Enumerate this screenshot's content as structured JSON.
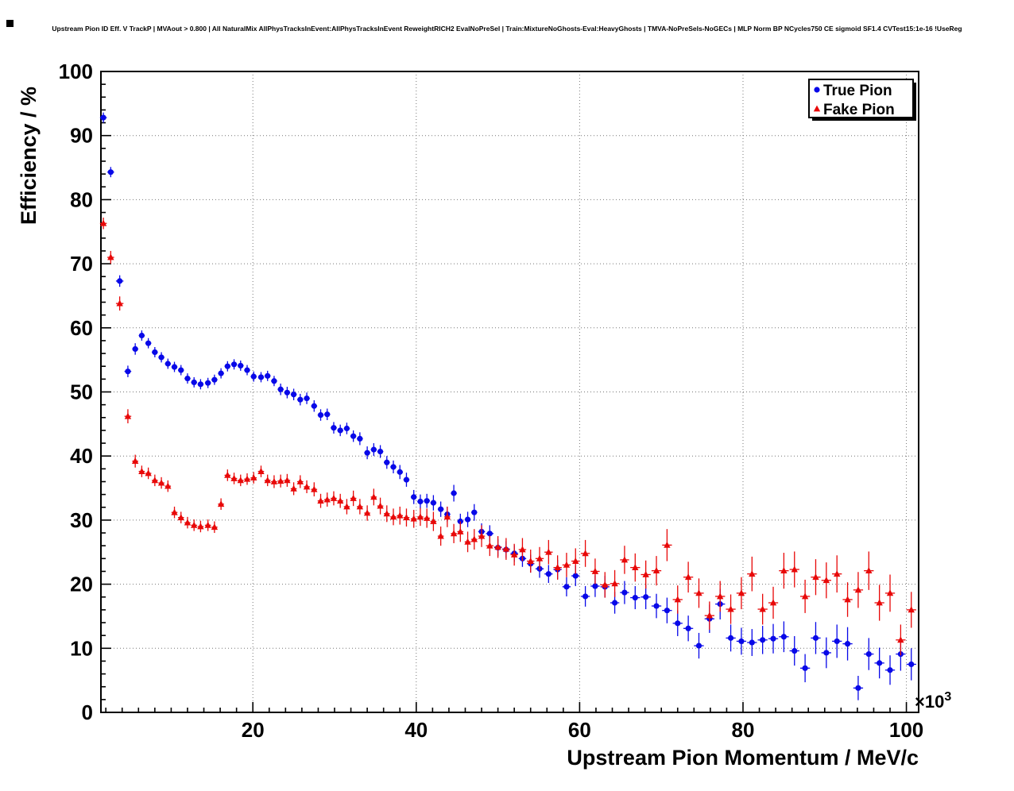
{
  "title": "Upstream Pion ID Eff. V TrackP | MVAout > 0.800 | All NaturalMix AllPhysTracksInEvent:AllPhysTracksInEvent ReweightRICH2 EvalNoPreSel | Train:MixtureNoGhosts-Eval:HeavyGhosts | TMVA-NoPreSels-NoGECs | MLP Norm BP NCycles750 CE sigmoid SF1.4 CVTest15:1e-16 !UseReg",
  "colors": {
    "true_pion": "#0808e8",
    "fake_pion": "#e80808",
    "frame": "#000000",
    "grid": "#777777"
  },
  "chart_data": {
    "type": "scatter",
    "title": "Upstream Pion ID Eff. V TrackP | MVAout > 0.800 | All NaturalMix AllPhysTracksInEvent:AllPhysTracksInEvent ReweightRICH2 EvalNoPreSel | Train:MixtureNoGhosts-Eval:HeavyGhosts | TMVA-NoPreSels-NoGECs | MLP Norm BP NCycles750 CE sigmoid SF1.4 CVTest15:1e-16 !UseReg",
    "xlabel": "Upstream Pion Momentum / MeV/c",
    "ylabel": "Efficiency / %",
    "x_scale_base": "×10",
    "x_scale_exp": "3",
    "xlim": [
      1.4,
      101.5
    ],
    "ylim": [
      0,
      100
    ],
    "x_ticks": [
      20,
      40,
      60,
      80,
      100
    ],
    "y_ticks": [
      0,
      10,
      20,
      30,
      40,
      50,
      60,
      70,
      80,
      90,
      100
    ],
    "x_minor_step": 2,
    "y_minor_step": 2,
    "grid": true,
    "grid_style": "dotted",
    "legend_position": "top-right",
    "series": [
      {
        "name": "True Pion",
        "marker": "circle",
        "color": "#0808e8",
        "points": [
          [
            1.7,
            92.8,
            0.8
          ],
          [
            2.6,
            84.3,
            0.8
          ],
          [
            3.7,
            67.3,
            0.9
          ],
          [
            4.7,
            53.2,
            0.9
          ],
          [
            5.6,
            56.7,
            0.9
          ],
          [
            6.4,
            58.8,
            0.8
          ],
          [
            7.2,
            57.6,
            0.8
          ],
          [
            8.0,
            56.2,
            0.8
          ],
          [
            8.8,
            55.4,
            0.8
          ],
          [
            9.6,
            54.4,
            0.8
          ],
          [
            10.4,
            53.9,
            0.8
          ],
          [
            11.2,
            53.4,
            0.8
          ],
          [
            12.0,
            52.1,
            0.8
          ],
          [
            12.8,
            51.5,
            0.8
          ],
          [
            13.6,
            51.2,
            0.8
          ],
          [
            14.5,
            51.4,
            0.8
          ],
          [
            15.3,
            51.9,
            0.8
          ],
          [
            16.1,
            52.9,
            0.8
          ],
          [
            16.9,
            54.0,
            0.8
          ],
          [
            17.7,
            54.3,
            0.8
          ],
          [
            18.5,
            54.1,
            0.8
          ],
          [
            19.3,
            53.4,
            0.8
          ],
          [
            20.1,
            52.4,
            0.8
          ],
          [
            21.0,
            52.3,
            0.8
          ],
          [
            21.8,
            52.5,
            0.8
          ],
          [
            22.6,
            51.7,
            0.8
          ],
          [
            23.4,
            50.4,
            0.9
          ],
          [
            24.2,
            49.9,
            0.9
          ],
          [
            25.0,
            49.6,
            0.9
          ],
          [
            25.8,
            48.8,
            0.9
          ],
          [
            26.6,
            49.0,
            0.9
          ],
          [
            27.5,
            47.8,
            0.9
          ],
          [
            28.3,
            46.4,
            0.9
          ],
          [
            29.1,
            46.5,
            0.9
          ],
          [
            29.9,
            44.4,
            0.9
          ],
          [
            30.7,
            44.0,
            0.9
          ],
          [
            31.5,
            44.3,
            0.9
          ],
          [
            32.3,
            43.1,
            0.9
          ],
          [
            33.1,
            42.7,
            1.0
          ],
          [
            34.0,
            40.5,
            1.0
          ],
          [
            34.8,
            41.0,
            1.0
          ],
          [
            35.6,
            40.7,
            1.0
          ],
          [
            36.4,
            39.0,
            1.0
          ],
          [
            37.2,
            38.3,
            1.0
          ],
          [
            38.0,
            37.5,
            1.1
          ],
          [
            38.8,
            36.3,
            1.1
          ],
          [
            39.7,
            33.6,
            1.1
          ],
          [
            40.5,
            32.9,
            1.1
          ],
          [
            41.3,
            33.0,
            1.1
          ],
          [
            42.1,
            32.7,
            1.2
          ],
          [
            43.0,
            31.7,
            1.2
          ],
          [
            43.8,
            30.9,
            1.2
          ],
          [
            44.6,
            34.2,
            1.3
          ],
          [
            45.4,
            29.8,
            1.2
          ],
          [
            46.3,
            30.1,
            1.2
          ],
          [
            47.1,
            31.2,
            1.3
          ],
          [
            48.0,
            28.2,
            1.3
          ],
          [
            49.0,
            27.9,
            1.3
          ],
          [
            50.0,
            25.7,
            1.3
          ],
          [
            51.0,
            25.4,
            1.3
          ],
          [
            52.0,
            24.8,
            1.3
          ],
          [
            53.0,
            24.0,
            1.3
          ],
          [
            54.0,
            23.2,
            1.4
          ],
          [
            55.1,
            22.4,
            1.4
          ],
          [
            56.2,
            21.6,
            1.4
          ],
          [
            57.3,
            22.3,
            1.5
          ],
          [
            58.4,
            19.6,
            1.5
          ],
          [
            59.5,
            21.3,
            1.6
          ],
          [
            60.7,
            18.1,
            1.6
          ],
          [
            61.9,
            19.7,
            1.7
          ],
          [
            63.1,
            19.6,
            1.7
          ],
          [
            64.3,
            17.1,
            1.7
          ],
          [
            65.5,
            18.7,
            1.8
          ],
          [
            66.8,
            17.9,
            1.8
          ],
          [
            68.1,
            18.0,
            1.9
          ],
          [
            69.4,
            16.6,
            1.9
          ],
          [
            70.7,
            15.9,
            2.0
          ],
          [
            72.0,
            13.9,
            2.0
          ],
          [
            73.3,
            13.1,
            2.0
          ],
          [
            74.6,
            10.4,
            2.0
          ],
          [
            75.9,
            14.6,
            2.2
          ],
          [
            77.2,
            16.9,
            2.4
          ],
          [
            78.5,
            11.6,
            2.1
          ],
          [
            79.8,
            11.1,
            2.1
          ],
          [
            81.1,
            10.9,
            2.1
          ],
          [
            82.4,
            11.3,
            2.2
          ],
          [
            83.7,
            11.5,
            2.3
          ],
          [
            85.0,
            11.8,
            2.4
          ],
          [
            86.3,
            9.6,
            2.3
          ],
          [
            87.6,
            6.9,
            2.2
          ],
          [
            88.9,
            11.6,
            2.5
          ],
          [
            90.2,
            9.3,
            2.4
          ],
          [
            91.5,
            11.1,
            2.6
          ],
          [
            92.8,
            10.7,
            2.6
          ],
          [
            94.1,
            3.8,
            1.9
          ],
          [
            95.4,
            9.1,
            2.5
          ],
          [
            96.7,
            7.7,
            2.4
          ],
          [
            98.0,
            6.6,
            2.3
          ],
          [
            99.3,
            9.1,
            2.6
          ],
          [
            100.6,
            7.5,
            2.5
          ]
        ]
      },
      {
        "name": "Fake Pion",
        "marker": "triangle",
        "color": "#e80808",
        "points": [
          [
            1.7,
            76.3,
            0.9
          ],
          [
            2.6,
            71.0,
            1.0
          ],
          [
            3.7,
            63.8,
            1.1
          ],
          [
            4.7,
            46.2,
            1.1
          ],
          [
            5.6,
            39.2,
            1.0
          ],
          [
            6.4,
            37.6,
            0.9
          ],
          [
            7.2,
            37.3,
            0.9
          ],
          [
            8.0,
            36.2,
            0.9
          ],
          [
            8.8,
            35.8,
            0.9
          ],
          [
            9.6,
            35.3,
            0.9
          ],
          [
            10.4,
            31.2,
            0.9
          ],
          [
            11.2,
            30.4,
            0.9
          ],
          [
            12.0,
            29.6,
            0.9
          ],
          [
            12.8,
            29.2,
            0.9
          ],
          [
            13.6,
            29.0,
            0.9
          ],
          [
            14.5,
            29.2,
            0.9
          ],
          [
            15.3,
            28.9,
            0.9
          ],
          [
            16.1,
            32.5,
            0.9
          ],
          [
            16.9,
            37.0,
            0.9
          ],
          [
            17.7,
            36.5,
            0.9
          ],
          [
            18.5,
            36.2,
            0.9
          ],
          [
            19.3,
            36.4,
            0.9
          ],
          [
            20.1,
            36.6,
            0.9
          ],
          [
            21.0,
            37.6,
            0.9
          ],
          [
            21.8,
            36.2,
            0.9
          ],
          [
            22.6,
            36.0,
            1.0
          ],
          [
            23.4,
            36.1,
            1.0
          ],
          [
            24.2,
            36.2,
            1.0
          ],
          [
            25.0,
            34.9,
            1.0
          ],
          [
            25.8,
            36.0,
            1.0
          ],
          [
            26.6,
            35.2,
            1.0
          ],
          [
            27.5,
            34.8,
            1.1
          ],
          [
            28.3,
            33.0,
            1.1
          ],
          [
            29.1,
            33.2,
            1.1
          ],
          [
            29.9,
            33.4,
            1.1
          ],
          [
            30.7,
            33.0,
            1.1
          ],
          [
            31.5,
            32.1,
            1.2
          ],
          [
            32.3,
            33.4,
            1.2
          ],
          [
            33.1,
            32.1,
            1.2
          ],
          [
            34.0,
            31.1,
            1.2
          ],
          [
            34.8,
            33.6,
            1.3
          ],
          [
            35.6,
            32.2,
            1.3
          ],
          [
            36.4,
            31.0,
            1.3
          ],
          [
            37.2,
            30.5,
            1.3
          ],
          [
            38.0,
            30.7,
            1.4
          ],
          [
            38.8,
            30.4,
            1.4
          ],
          [
            39.7,
            30.2,
            1.4
          ],
          [
            40.5,
            30.5,
            1.4
          ],
          [
            41.3,
            30.3,
            1.5
          ],
          [
            42.1,
            29.8,
            1.5
          ],
          [
            43.0,
            27.5,
            1.5
          ],
          [
            43.8,
            30.5,
            1.6
          ],
          [
            44.6,
            27.9,
            1.5
          ],
          [
            45.4,
            28.2,
            1.6
          ],
          [
            46.3,
            26.6,
            1.6
          ],
          [
            47.1,
            27.0,
            1.6
          ],
          [
            48.0,
            27.5,
            1.7
          ],
          [
            49.0,
            26.0,
            1.6
          ],
          [
            50.0,
            25.8,
            1.7
          ],
          [
            51.0,
            25.5,
            1.7
          ],
          [
            52.0,
            24.6,
            1.7
          ],
          [
            53.0,
            25.4,
            1.8
          ],
          [
            54.0,
            23.6,
            1.8
          ],
          [
            55.1,
            24.0,
            1.8
          ],
          [
            56.2,
            25.0,
            1.9
          ],
          [
            57.3,
            22.6,
            1.9
          ],
          [
            58.4,
            23.0,
            1.9
          ],
          [
            59.5,
            23.6,
            2.0
          ],
          [
            60.7,
            24.8,
            2.1
          ],
          [
            61.9,
            22.0,
            2.0
          ],
          [
            63.1,
            19.9,
            2.0
          ],
          [
            64.3,
            20.1,
            2.1
          ],
          [
            65.5,
            23.8,
            2.2
          ],
          [
            66.8,
            22.6,
            2.2
          ],
          [
            68.1,
            21.5,
            2.2
          ],
          [
            69.4,
            22.1,
            2.3
          ],
          [
            70.7,
            26.1,
            2.5
          ],
          [
            72.0,
            17.6,
            2.2
          ],
          [
            73.3,
            21.1,
            2.4
          ],
          [
            74.6,
            18.6,
            2.3
          ],
          [
            75.9,
            15.1,
            2.2
          ],
          [
            77.2,
            18.1,
            2.4
          ],
          [
            78.5,
            16.1,
            2.3
          ],
          [
            79.8,
            18.6,
            2.5
          ],
          [
            81.1,
            21.6,
            2.7
          ],
          [
            82.4,
            16.1,
            2.4
          ],
          [
            83.7,
            17.1,
            2.5
          ],
          [
            85.0,
            22.1,
            2.8
          ],
          [
            86.3,
            22.3,
            2.8
          ],
          [
            87.6,
            18.1,
            2.6
          ],
          [
            88.9,
            21.1,
            2.8
          ],
          [
            90.2,
            20.6,
            2.8
          ],
          [
            91.5,
            21.6,
            2.9
          ],
          [
            92.8,
            17.6,
            2.7
          ],
          [
            94.1,
            19.1,
            2.8
          ],
          [
            95.4,
            22.1,
            3.0
          ],
          [
            96.7,
            17.1,
            2.8
          ],
          [
            98.0,
            18.6,
            2.9
          ],
          [
            99.3,
            11.3,
            2.4
          ],
          [
            100.6,
            16.0,
            2.8
          ]
        ]
      }
    ]
  }
}
